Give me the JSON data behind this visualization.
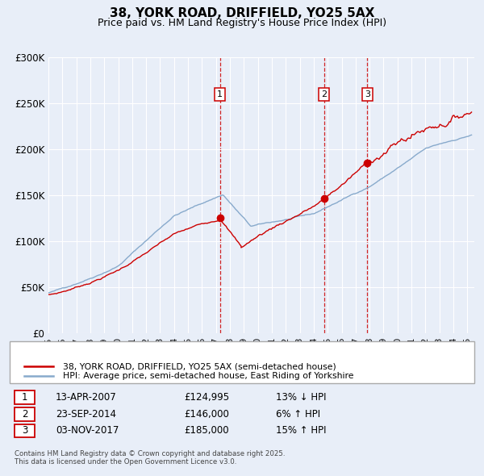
{
  "title": "38, YORK ROAD, DRIFFIELD, YO25 5AX",
  "subtitle": "Price paid vs. HM Land Registry's House Price Index (HPI)",
  "title_fontsize": 11,
  "subtitle_fontsize": 9,
  "bg_color": "#e8eef8",
  "plot_bg_color": "#e8eef8",
  "grid_color": "#ffffff",
  "red_color": "#cc0000",
  "blue_color": "#88aacc",
  "ylim": [
    0,
    300000
  ],
  "yticks": [
    0,
    50000,
    100000,
    150000,
    200000,
    250000,
    300000
  ],
  "ytick_labels": [
    "£0",
    "£50K",
    "£100K",
    "£150K",
    "£200K",
    "£250K",
    "£300K"
  ],
  "sale_dates_num": [
    2007.28,
    2014.73,
    2017.84
  ],
  "sale_prices": [
    124995,
    146000,
    185000
  ],
  "sale_labels": [
    "1",
    "2",
    "3"
  ],
  "vline_dates": [
    2007.28,
    2014.73,
    2017.84
  ],
  "legend_line1": "38, YORK ROAD, DRIFFIELD, YO25 5AX (semi-detached house)",
  "legend_line2": "HPI: Average price, semi-detached house, East Riding of Yorkshire",
  "table_rows": [
    [
      "1",
      "13-APR-2007",
      "£124,995",
      "13% ↓ HPI"
    ],
    [
      "2",
      "23-SEP-2014",
      "£146,000",
      "6% ↑ HPI"
    ],
    [
      "3",
      "03-NOV-2017",
      "£185,000",
      "15% ↑ HPI"
    ]
  ],
  "footnote": "Contains HM Land Registry data © Crown copyright and database right 2025.\nThis data is licensed under the Open Government Licence v3.0.",
  "xmin": 1995,
  "xmax": 2025.5
}
